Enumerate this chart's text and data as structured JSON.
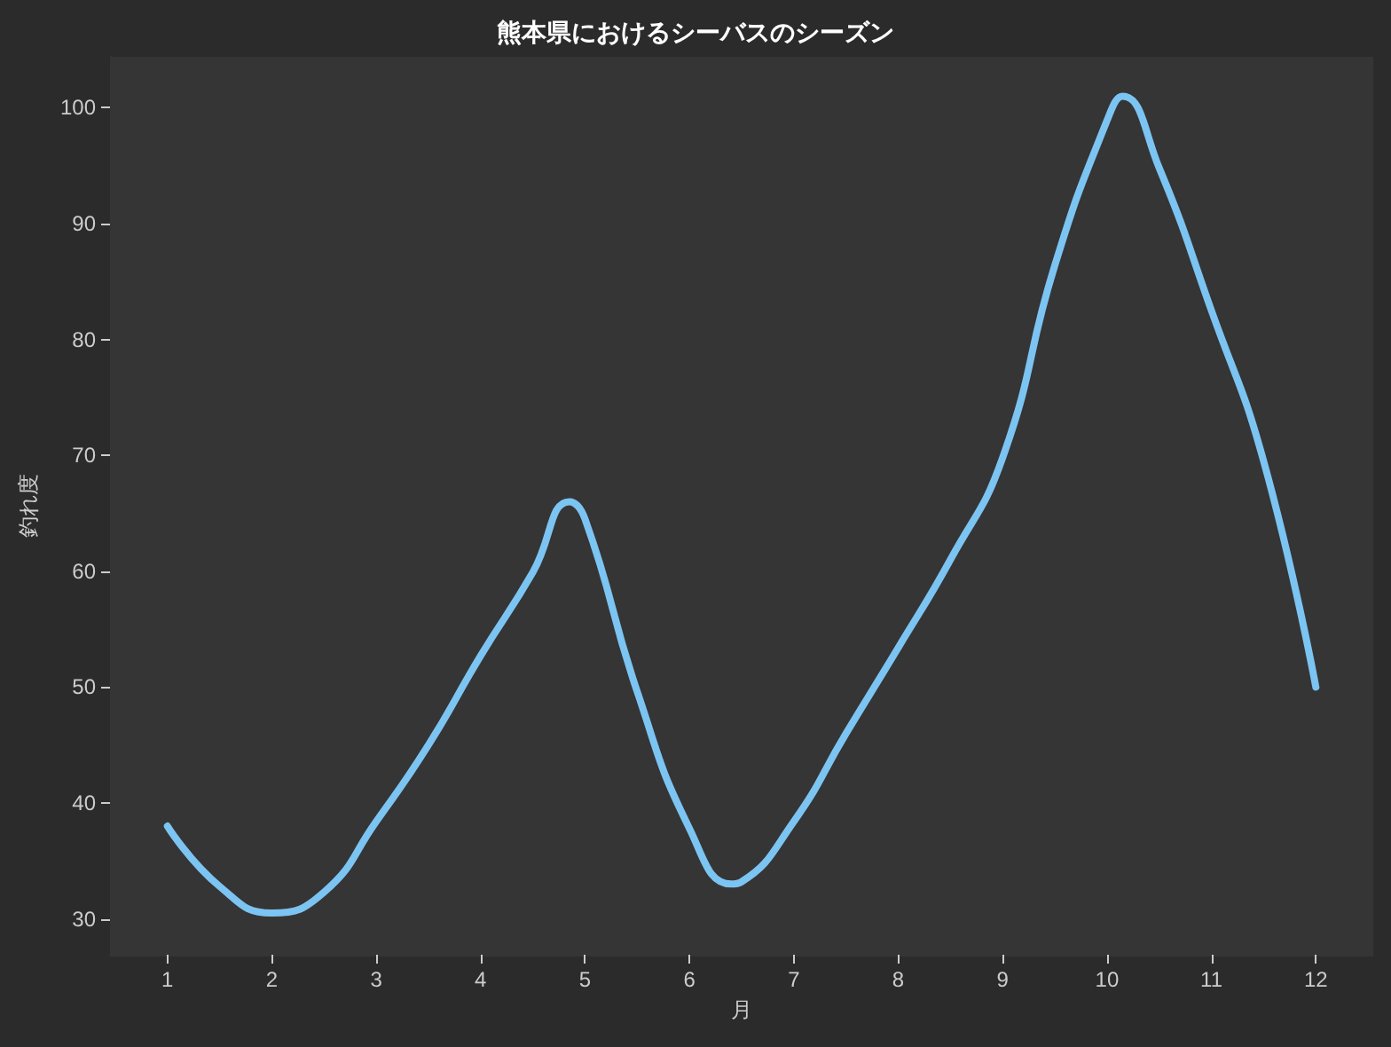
{
  "chart_data": {
    "type": "line",
    "title": "熊本県におけるシーバスのシーズン",
    "xlabel": "月",
    "ylabel": "釣れ度",
    "x": [
      1,
      1.5,
      2,
      2.5,
      3,
      3.5,
      4,
      4.5,
      4.85,
      5,
      5.5,
      6,
      6.4,
      6.5,
      7,
      7.5,
      8,
      8.5,
      9,
      9.5,
      10,
      10.15,
      10.5,
      11,
      11.5,
      12
    ],
    "series": [
      {
        "color": "#7cc4f2",
        "values": [
          38,
          32.8,
          30.5,
          32.3,
          38.4,
          45,
          52.7,
          59.9,
          66,
          64.5,
          49.6,
          37.8,
          33,
          33.2,
          38.4,
          46,
          53.4,
          61,
          69.8,
          86.4,
          98.9,
          101,
          94.8,
          82.5,
          69.5,
          50
        ]
      }
    ],
    "xlim": [
      0.45,
      12.55
    ],
    "xticks": [
      1,
      2,
      3,
      4,
      5,
      6,
      7,
      8,
      9,
      10,
      11,
      12
    ],
    "ylim": [
      26.9,
      104.4
    ],
    "yticks": [
      30,
      40,
      50,
      60,
      70,
      80,
      90,
      100
    ],
    "grid": false,
    "marker": "none",
    "line_style": "solid"
  }
}
